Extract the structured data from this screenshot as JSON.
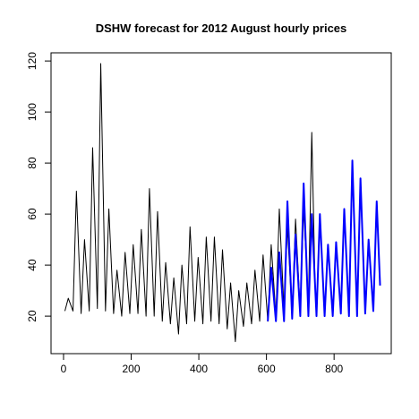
{
  "chart_data": {
    "type": "line",
    "title": "DSHW forecast for 2012 August hourly prices",
    "series": [
      {
        "color": "#000000",
        "width": 1,
        "x": [
          4,
          14,
          28,
          38,
          52,
          62,
          76,
          86,
          100,
          110,
          124,
          134,
          148,
          158,
          172,
          182,
          196,
          206,
          220,
          230,
          244,
          254,
          268,
          278,
          292,
          302,
          316,
          326,
          340,
          350,
          364,
          374,
          388,
          398,
          412,
          422,
          436,
          446,
          460,
          470,
          484,
          494,
          508,
          518,
          532,
          542,
          556,
          566,
          580,
          590,
          604,
          614,
          628,
          638,
          652,
          662,
          676,
          686,
          700,
          710,
          724,
          734,
          744
        ],
        "values": [
          22,
          27,
          22,
          69,
          21,
          50,
          22,
          86,
          23,
          119,
          22,
          62,
          21,
          38,
          20,
          45,
          21,
          48,
          21,
          54,
          20,
          70,
          20,
          61,
          18,
          41,
          17,
          35,
          13,
          40,
          17,
          55,
          18,
          43,
          17,
          51,
          18,
          51,
          17,
          46,
          15,
          33,
          10,
          30,
          16,
          33,
          17,
          38,
          18,
          44,
          18,
          48,
          20,
          62,
          22,
          55,
          20,
          58,
          22,
          62,
          25,
          92,
          30
        ]
      },
      {
        "color": "#0000ff",
        "width": 2,
        "x": [
          604,
          614,
          628,
          638,
          652,
          662,
          676,
          686,
          700,
          710,
          724,
          734,
          748,
          758,
          772,
          782,
          796,
          806,
          820,
          830,
          844,
          854,
          868,
          878,
          892,
          902,
          916,
          926,
          936
        ],
        "values": [
          18,
          39,
          18,
          45,
          18,
          65,
          19,
          52,
          20,
          72,
          20,
          60,
          20,
          60,
          20,
          48,
          20,
          49,
          21,
          62,
          20,
          81,
          20,
          74,
          21,
          50,
          22,
          65,
          32
        ]
      }
    ],
    "xlim": [
      -37,
      969
    ],
    "xticks": [
      0,
      200,
      400,
      600,
      800
    ],
    "ylim": [
      5.3,
      123.2
    ],
    "yticks": [
      20,
      40,
      60,
      80,
      100,
      120
    ]
  }
}
